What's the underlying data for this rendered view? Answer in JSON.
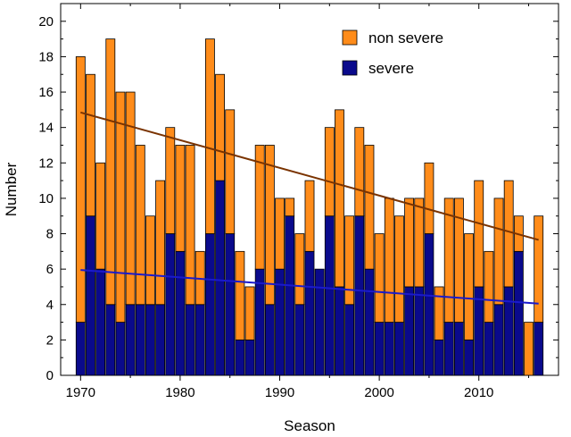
{
  "chart_data": {
    "type": "bar",
    "stacked": true,
    "xlabel": "Season",
    "ylabel": "Number",
    "xlim": [
      1968,
      2018
    ],
    "ylim": [
      0,
      21
    ],
    "xticks": [
      1970,
      1980,
      1990,
      2000,
      2010
    ],
    "yticks": [
      0,
      2,
      4,
      6,
      8,
      10,
      12,
      14,
      16,
      18,
      20
    ],
    "legend_position": "top-right",
    "grid": false,
    "x": [
      1970,
      1971,
      1972,
      1973,
      1974,
      1975,
      1976,
      1977,
      1978,
      1979,
      1980,
      1981,
      1982,
      1983,
      1984,
      1985,
      1986,
      1987,
      1988,
      1989,
      1990,
      1991,
      1992,
      1993,
      1994,
      1995,
      1996,
      1997,
      1998,
      1999,
      2000,
      2001,
      2002,
      2003,
      2004,
      2005,
      2006,
      2007,
      2008,
      2009,
      2010,
      2011,
      2012,
      2013,
      2014,
      2015,
      2016
    ],
    "series": [
      {
        "name": "severe",
        "color": "#0a0a8c",
        "values": [
          3,
          9,
          6,
          4,
          3,
          4,
          4,
          4,
          4,
          8,
          7,
          4,
          4,
          8,
          11,
          8,
          2,
          2,
          6,
          4,
          6,
          9,
          4,
          7,
          6,
          9,
          5,
          4,
          9,
          6,
          3,
          3,
          3,
          5,
          5,
          8,
          2,
          3,
          3,
          2,
          5,
          3,
          4,
          5,
          7,
          0,
          3
        ]
      },
      {
        "name": "non severe",
        "color": "#ff8c1a",
        "values": [
          15,
          8,
          6,
          15,
          13,
          12,
          9,
          5,
          7,
          6,
          6,
          9,
          3,
          11,
          6,
          7,
          5,
          3,
          7,
          9,
          4,
          1,
          4,
          4,
          0,
          5,
          10,
          5,
          5,
          7,
          5,
          7,
          6,
          5,
          5,
          4,
          3,
          7,
          7,
          6,
          6,
          4,
          6,
          6,
          2,
          3,
          6
        ]
      }
    ],
    "trend_lines": [
      {
        "series": "total",
        "color": "#7a3300",
        "start": [
          1970,
          14.85
        ],
        "end": [
          2016,
          7.65
        ]
      },
      {
        "series": "severe",
        "color": "#1a1acc",
        "start": [
          1970,
          5.95
        ],
        "end": [
          2016,
          4.05
        ]
      }
    ]
  }
}
